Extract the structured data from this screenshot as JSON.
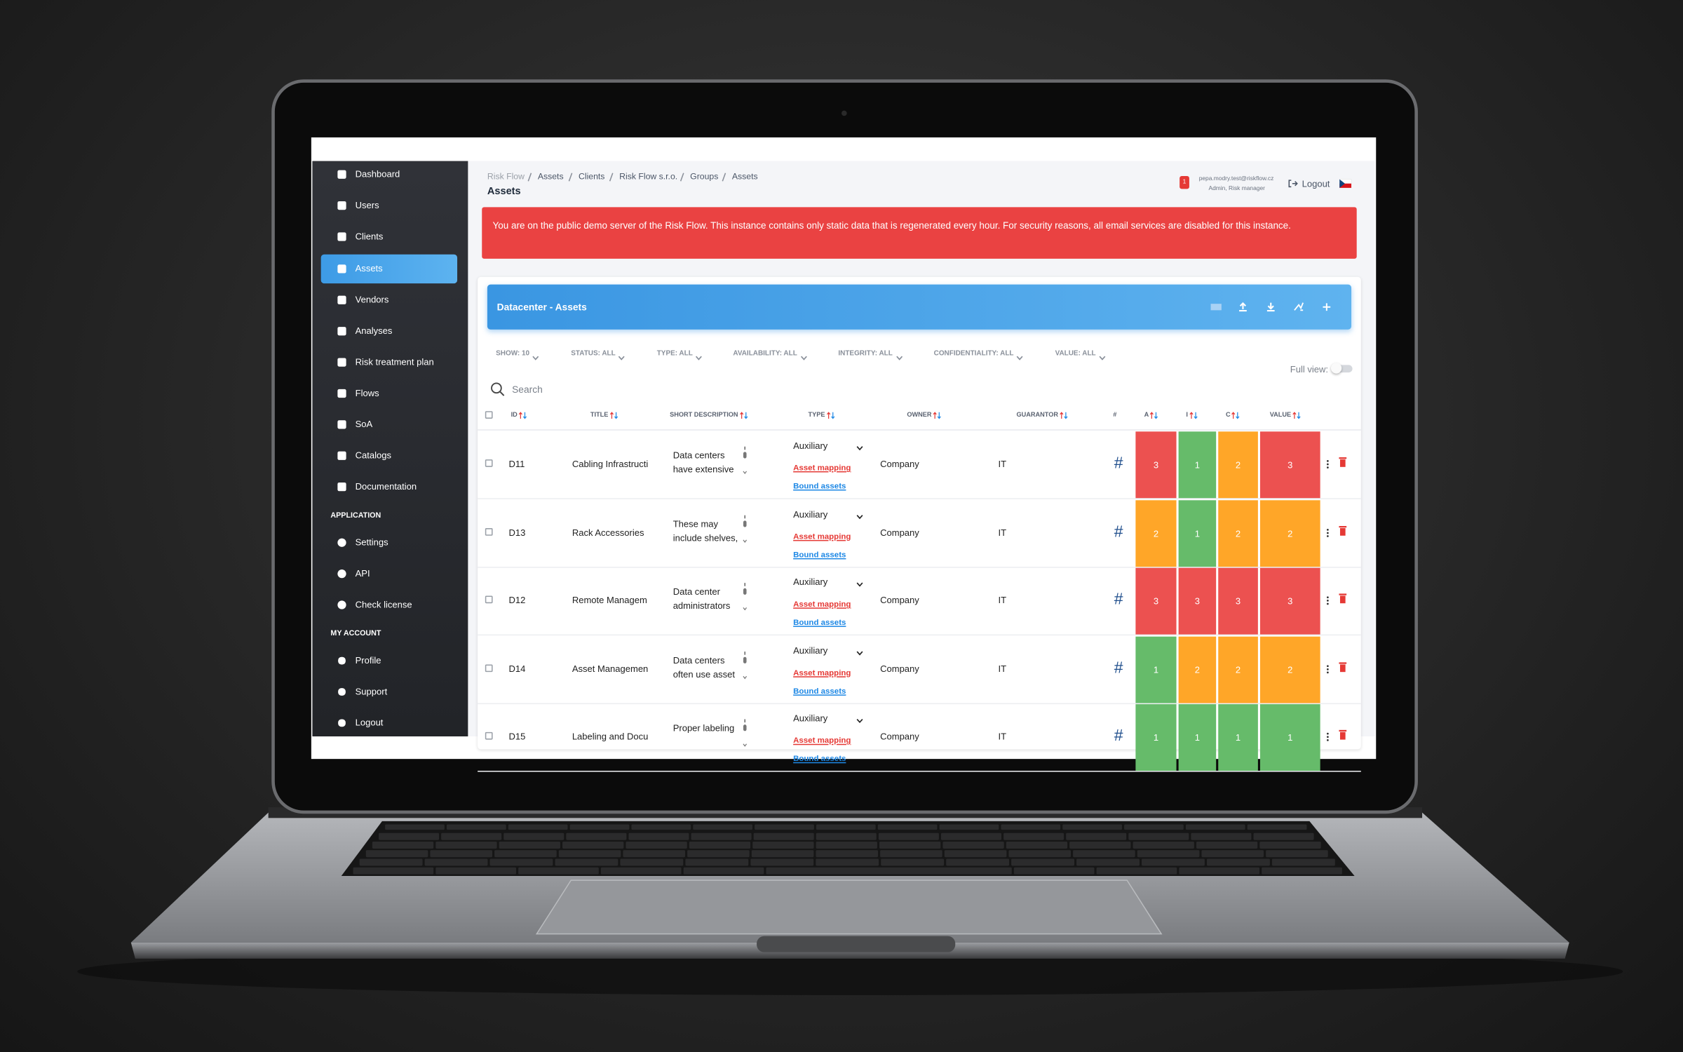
{
  "sidebar": {
    "menu": [
      "Dashboard",
      "Users",
      "Clients",
      "Assets",
      "Vendors",
      "Analyses",
      "Risk treatment plan",
      "Flows",
      "SoA",
      "Catalogs",
      "Documentation"
    ],
    "application_heading": "APPLICATION",
    "application": [
      "Settings",
      "API",
      "Check license"
    ],
    "account_heading": "MY ACCOUNT",
    "account": [
      "Profile",
      "Support",
      "Logout"
    ]
  },
  "header": {
    "breadcrumb": [
      "Risk Flow",
      "Assets",
      "Clients",
      "Risk Flow s.r.o.",
      "Groups",
      "Assets"
    ],
    "title": "Assets",
    "notification_count": 1,
    "user_email": "pepa.modry.test@riskflow.cz",
    "user_role": "Admin, Risk manager",
    "logout": "Logout"
  },
  "alert": "You are on the public demo server of the Risk Flow. This instance contains only static data that is regenerated every hour. For security reasons, all email services are disabled for this instance.",
  "panel": {
    "title": "Datacenter - Assets",
    "filters": [
      "SHOW: 10",
      "STATUS: ALL",
      "TYPE: ALL",
      "AVAILABILITY: ALL",
      "INTEGRITY: ALL",
      "CONFIDENTIALITY: ALL",
      "VALUE: ALL"
    ],
    "full_view": "Full view:",
    "search": "Search"
  },
  "table": {
    "columns": [
      "ID",
      "TITLE",
      "SHORT DESCRIPTION",
      "TYPE",
      "OWNER",
      "GUARANTOR",
      "#",
      "A",
      "I",
      "C",
      "VALUE"
    ],
    "asset_mapping": "Asset mapping",
    "bound_assets": "Bound assets",
    "mapping_symbol": "#",
    "level_colors": {
      "1": "#66bb6a",
      "2": "#ffa628",
      "3": "#ec5150"
    },
    "rows": [
      {
        "id": "D11",
        "title": "Cabling Infrastructi",
        "description": [
          "Data centers",
          "have extensive"
        ],
        "type": "Auxiliary",
        "owner": "Company",
        "guarantor": "IT",
        "a": 3,
        "i": 1,
        "c": 2,
        "value": 3
      },
      {
        "id": "D13",
        "title": "Rack Accessories",
        "description": [
          "These may",
          "include shelves,"
        ],
        "type": "Auxiliary",
        "owner": "Company",
        "guarantor": "IT",
        "a": 2,
        "i": 1,
        "c": 2,
        "value": 2
      },
      {
        "id": "D12",
        "title": "Remote Managem",
        "description": [
          "Data center",
          "administrators"
        ],
        "type": "Auxiliary",
        "owner": "Company",
        "guarantor": "IT",
        "a": 3,
        "i": 3,
        "c": 3,
        "value": 3
      },
      {
        "id": "D14",
        "title": "Asset Managemen",
        "description": [
          "Data centers",
          "often use asset"
        ],
        "type": "Auxiliary",
        "owner": "Company",
        "guarantor": "IT",
        "a": 1,
        "i": 2,
        "c": 2,
        "value": 2
      },
      {
        "id": "D15",
        "title": "Labeling and Docu",
        "description": [
          "Proper labeling"
        ],
        "type": "Auxiliary",
        "owner": "Company",
        "guarantor": "IT",
        "a": 1,
        "i": 1,
        "c": 1,
        "value": 1
      }
    ]
  }
}
